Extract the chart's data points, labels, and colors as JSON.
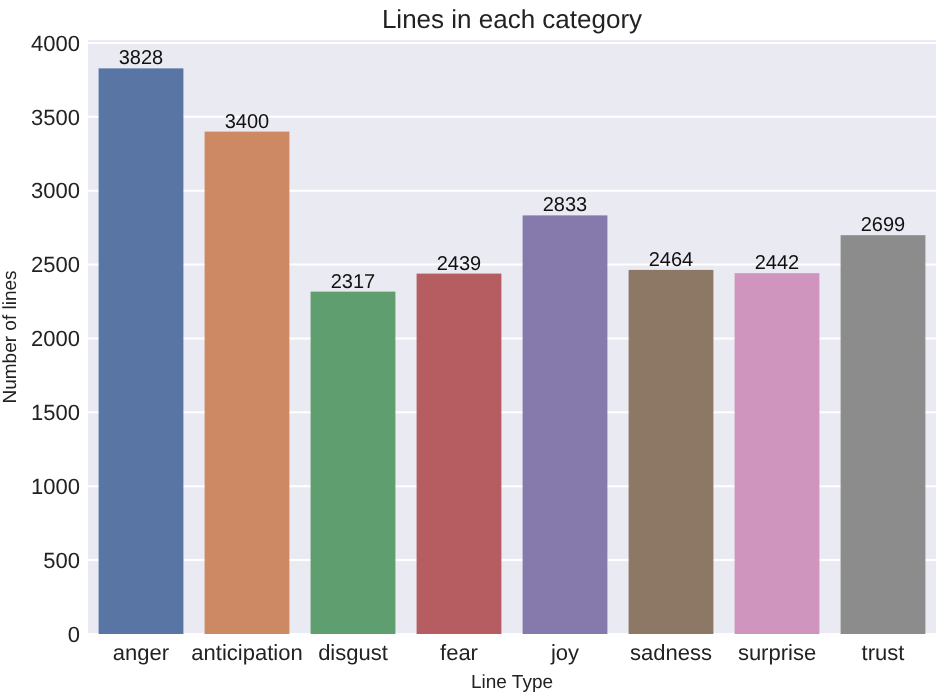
{
  "chart_data": {
    "type": "bar",
    "title": "Lines in each category",
    "xlabel": "Line Type",
    "ylabel": "Number of lines",
    "categories": [
      "anger",
      "anticipation",
      "disgust",
      "fear",
      "joy",
      "sadness",
      "surprise",
      "trust"
    ],
    "values": [
      3828,
      3400,
      2317,
      2439,
      2833,
      2464,
      2442,
      2699
    ],
    "colors": [
      "#5975a4",
      "#cc8963",
      "#5f9e6e",
      "#b55d60",
      "#857aab",
      "#8d7866",
      "#d095bf",
      "#8c8c8c"
    ],
    "ylim": [
      0,
      4020
    ],
    "yticks": [
      0,
      500,
      1000,
      1500,
      2000,
      2500,
      3000,
      3500,
      4000
    ],
    "grid": "y",
    "data_labels": true
  }
}
